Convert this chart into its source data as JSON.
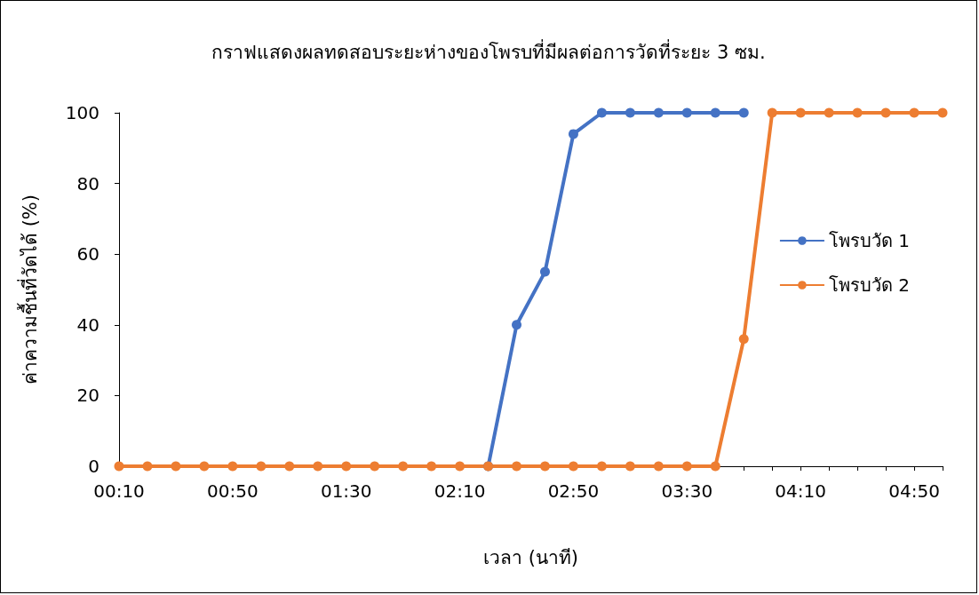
{
  "chart_data": {
    "type": "line",
    "title": "กราฟแสดงผลทดสอบระยะห่างของโพรบที่มีผลต่อการวัดที่ระยะ 3 ซม.",
    "xlabel": "เวลา (นาที)",
    "ylabel": "ค่าความชื้นที่วัดได้ (%)",
    "categories": [
      "00:10",
      null,
      null,
      null,
      "00:50",
      null,
      null,
      null,
      "01:30",
      null,
      null,
      null,
      "02:10",
      null,
      null,
      null,
      "02:50",
      null,
      null,
      null,
      "03:30",
      null,
      null,
      null,
      "04:10",
      null,
      null,
      null,
      "04:50",
      null
    ],
    "series": [
      {
        "name": "โพรบวัด 1",
        "color": "#4472c4",
        "values": [
          null,
          null,
          null,
          null,
          null,
          null,
          null,
          null,
          null,
          null,
          null,
          null,
          null,
          0,
          40,
          55,
          94,
          100,
          100,
          100,
          100,
          100,
          100,
          null,
          null,
          null,
          null,
          null,
          null,
          null
        ]
      },
      {
        "name": "โพรบวัด 2",
        "color": "#ed7d31",
        "values": [
          0,
          0,
          0,
          0,
          0,
          0,
          0,
          0,
          0,
          0,
          0,
          0,
          0,
          0,
          0,
          0,
          0,
          0,
          0,
          0,
          0,
          0,
          36,
          100,
          100,
          100,
          100,
          100,
          100,
          100
        ]
      }
    ],
    "ylim": [
      0,
      100
    ],
    "yticks": [
      0,
      20,
      40,
      60,
      80,
      100
    ],
    "grid": false,
    "legend": "right",
    "marker": "circle",
    "line_style": "solid"
  }
}
